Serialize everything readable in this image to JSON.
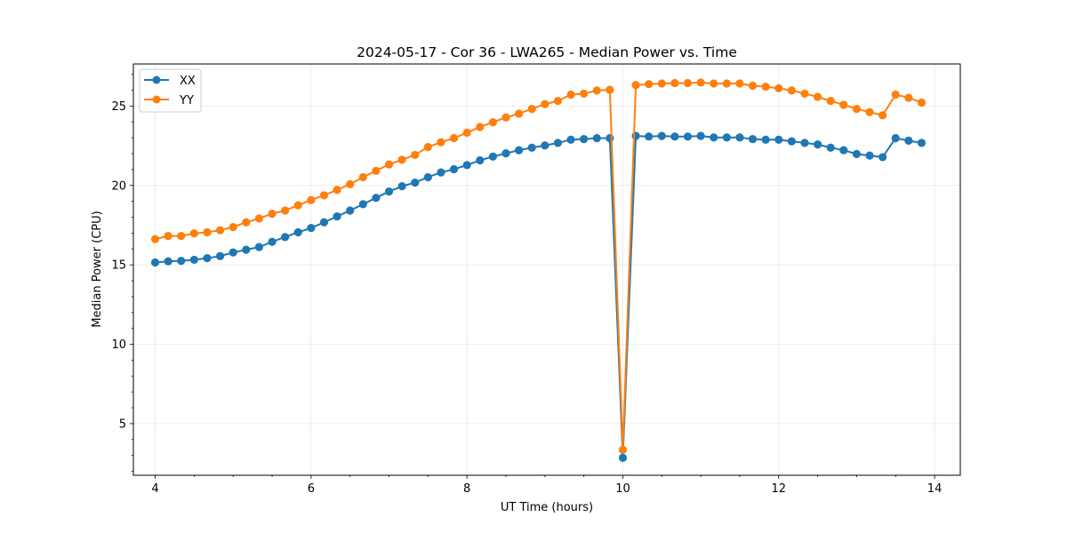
{
  "chart_data": {
    "type": "line",
    "title": "2024-05-17 - Cor 36 - LWA265 - Median Power vs. Time",
    "xlabel": "UT Time (hours)",
    "ylabel": "Median Power (CPU)",
    "xlim": [
      3.72,
      14.33
    ],
    "ylim": [
      1.75,
      27.65
    ],
    "xticks": [
      4,
      6,
      8,
      10,
      12,
      14
    ],
    "yticks": [
      5,
      10,
      15,
      20,
      25
    ],
    "grid": true,
    "legend": "top-left",
    "x": [
      4.0,
      4.1667,
      4.3333,
      4.5,
      4.6667,
      4.8333,
      5.0,
      5.1667,
      5.3333,
      5.5,
      5.6667,
      5.8333,
      6.0,
      6.1667,
      6.3333,
      6.5,
      6.6667,
      6.8333,
      7.0,
      7.1667,
      7.3333,
      7.5,
      7.6667,
      7.8333,
      8.0,
      8.1667,
      8.3333,
      8.5,
      8.6667,
      8.8333,
      9.0,
      9.1667,
      9.3333,
      9.5,
      9.6667,
      9.8333,
      10.0,
      10.1667,
      10.3333,
      10.5,
      10.6667,
      10.8333,
      11.0,
      11.1667,
      11.3333,
      11.5,
      11.6667,
      11.8333,
      12.0,
      12.1667,
      12.3333,
      12.5,
      12.6667,
      12.8333,
      13.0,
      13.1667,
      13.3333,
      13.5,
      13.6667,
      13.8333
    ],
    "series": [
      {
        "name": "XX",
        "color": "#1f77b4",
        "values": [
          15.15,
          15.22,
          15.25,
          15.32,
          15.42,
          15.55,
          15.78,
          15.95,
          16.12,
          16.45,
          16.75,
          17.05,
          17.32,
          17.68,
          18.05,
          18.42,
          18.82,
          19.22,
          19.62,
          19.95,
          20.18,
          20.52,
          20.82,
          21.02,
          21.28,
          21.58,
          21.82,
          22.02,
          22.22,
          22.38,
          22.52,
          22.68,
          22.88,
          22.92,
          22.98,
          22.98,
          2.85,
          23.12,
          23.08,
          23.12,
          23.08,
          23.08,
          23.12,
          23.02,
          23.02,
          23.02,
          22.92,
          22.88,
          22.88,
          22.78,
          22.68,
          22.58,
          22.38,
          22.22,
          21.98,
          21.88,
          21.78,
          22.98,
          22.82,
          22.68
        ]
      },
      {
        "name": "YY",
        "color": "#ff7f0e",
        "values": [
          16.62,
          16.82,
          16.82,
          16.98,
          17.05,
          17.18,
          17.38,
          17.68,
          17.92,
          18.22,
          18.42,
          18.75,
          19.08,
          19.38,
          19.72,
          20.08,
          20.52,
          20.92,
          21.32,
          21.62,
          21.92,
          22.42,
          22.72,
          22.98,
          23.32,
          23.68,
          23.98,
          24.28,
          24.52,
          24.82,
          25.12,
          25.32,
          25.72,
          25.78,
          25.98,
          26.02,
          3.35,
          26.32,
          26.38,
          26.42,
          26.45,
          26.45,
          26.48,
          26.42,
          26.42,
          26.42,
          26.28,
          26.22,
          26.12,
          25.98,
          25.78,
          25.58,
          25.32,
          25.08,
          24.82,
          24.62,
          24.42,
          25.72,
          25.52,
          25.22
        ]
      }
    ]
  }
}
